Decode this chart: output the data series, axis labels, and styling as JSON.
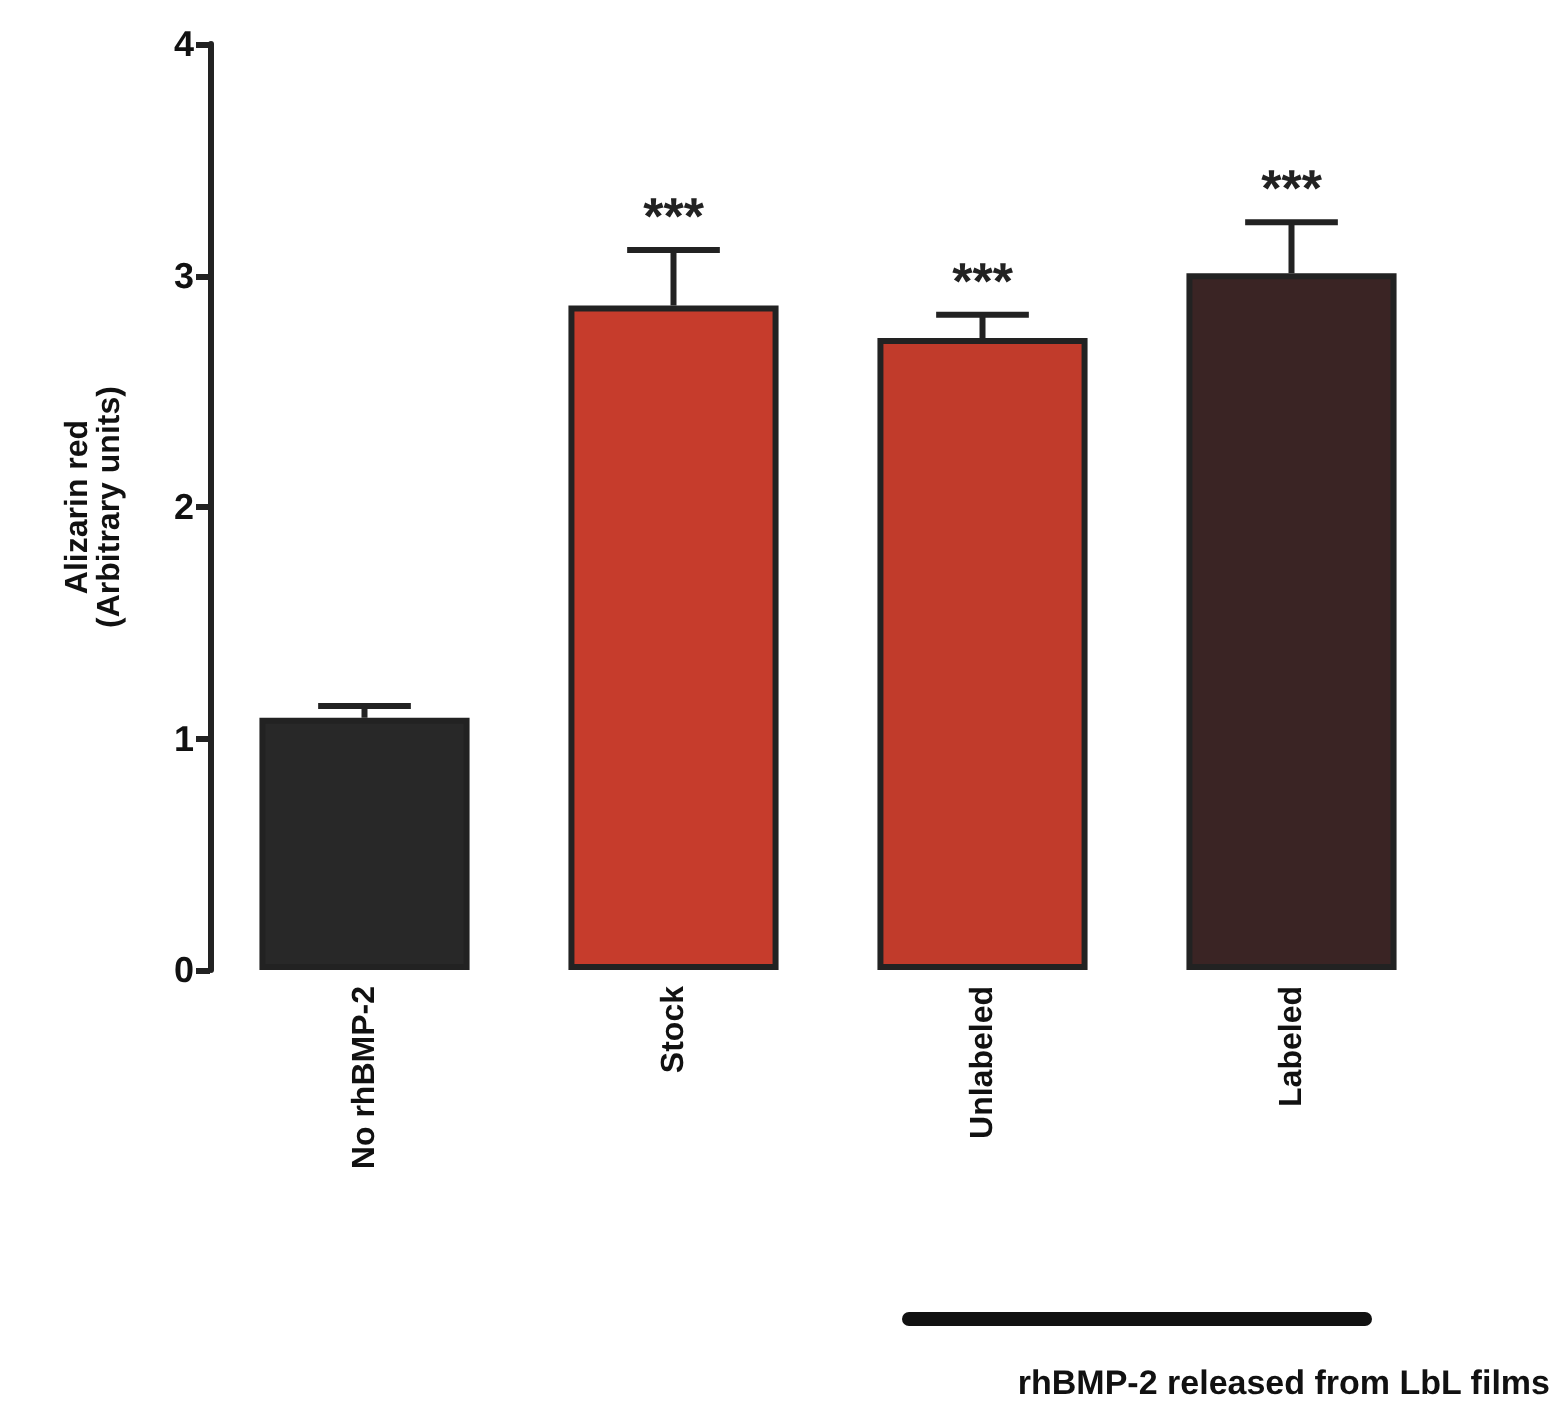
{
  "chart_data": {
    "type": "bar",
    "ylabel": "Alizarin red\n(Arbitrary units)",
    "categories": [
      "No rhBMP-2",
      "Stock",
      "Unlabeled",
      "Labeled"
    ],
    "values": [
      1.09,
      2.87,
      2.73,
      3.01
    ],
    "colors": [
      "#282828",
      "#c63c2c",
      "#c13b2b",
      "#3a2424"
    ],
    "errors": [
      [
        1.09,
        1.14
      ],
      [
        2.87,
        3.11
      ],
      [
        2.73,
        2.83
      ],
      [
        3.01,
        3.23
      ]
    ],
    "ylim": [
      0,
      4
    ],
    "yticks": [
      0,
      1,
      2,
      3,
      4
    ],
    "grid": false,
    "annotations": [
      {
        "text": "***",
        "x": "Stock",
        "y": 3.11
      },
      {
        "text": "***",
        "x": "Unlabeled",
        "y": 2.83
      },
      {
        "text": "***",
        "x": "Labeled",
        "y": 3.23
      },
      "rhBMP-2 released from LbL films"
    ]
  }
}
